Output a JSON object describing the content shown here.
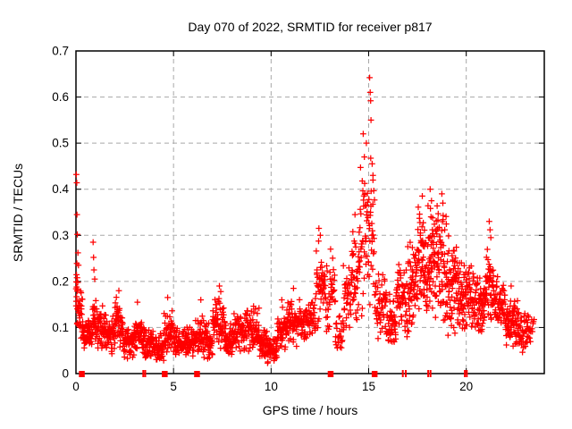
{
  "window": {
    "background": "#ffffff"
  },
  "chart_data": {
    "type": "scatter",
    "title": "Day 070 of 2022, SRMTID for receiver p817",
    "xlabel": "GPS time / hours",
    "ylabel": "SRMTID / TECUs",
    "xlim": [
      0,
      24
    ],
    "ylim": [
      0,
      0.7
    ],
    "grid": true,
    "legend": "none",
    "marker": "plus",
    "marker_color": "#ff0000",
    "grid_color": "#a8a8a8",
    "xticks": {
      "values": [
        0,
        5,
        10,
        15,
        20
      ],
      "labels": [
        "0",
        "5",
        "10",
        "15",
        "20"
      ]
    },
    "yticks": {
      "values": [
        0,
        0.1,
        0.2,
        0.3,
        0.4,
        0.5,
        0.6,
        0.7
      ],
      "labels": [
        "0",
        "0.1",
        "0.2",
        "0.3",
        "0.4",
        "0.5",
        "0.6",
        "0.7"
      ]
    },
    "series_name": "SRMTID",
    "density_bands_comment": "each band = [hour_start, hour_end, y_min_TECU, y_max_TECU, approx_point_count] estimated from plot",
    "density_bands": [
      [
        0.0,
        0.1,
        0.08,
        0.25,
        18
      ],
      [
        0.1,
        0.35,
        0.07,
        0.2,
        28
      ],
      [
        0.35,
        0.6,
        0.04,
        0.12,
        28
      ],
      [
        0.6,
        0.85,
        0.05,
        0.13,
        28
      ],
      [
        0.85,
        1.05,
        0.06,
        0.17,
        25
      ],
      [
        1.05,
        1.5,
        0.05,
        0.15,
        48
      ],
      [
        1.5,
        2.0,
        0.04,
        0.13,
        50
      ],
      [
        2.0,
        2.4,
        0.05,
        0.175,
        42
      ],
      [
        2.4,
        3.0,
        0.03,
        0.11,
        60
      ],
      [
        3.0,
        3.5,
        0.04,
        0.135,
        50
      ],
      [
        3.5,
        4.0,
        0.03,
        0.1,
        50
      ],
      [
        4.0,
        4.5,
        0.02,
        0.09,
        50
      ],
      [
        4.5,
        5.0,
        0.035,
        0.145,
        50
      ],
      [
        5.0,
        5.5,
        0.03,
        0.1,
        50
      ],
      [
        5.5,
        6.0,
        0.03,
        0.11,
        50
      ],
      [
        6.0,
        6.5,
        0.04,
        0.13,
        50
      ],
      [
        6.5,
        7.0,
        0.03,
        0.12,
        52
      ],
      [
        7.0,
        7.6,
        0.04,
        0.175,
        60
      ],
      [
        7.6,
        8.1,
        0.03,
        0.12,
        52
      ],
      [
        8.1,
        8.7,
        0.04,
        0.14,
        58
      ],
      [
        8.7,
        9.4,
        0.04,
        0.15,
        65
      ],
      [
        9.4,
        9.8,
        0.025,
        0.1,
        42
      ],
      [
        9.8,
        10.3,
        0.02,
        0.08,
        52
      ],
      [
        10.3,
        10.8,
        0.04,
        0.145,
        52
      ],
      [
        10.8,
        11.4,
        0.05,
        0.17,
        58
      ],
      [
        11.4,
        12.0,
        0.06,
        0.17,
        55
      ],
      [
        12.0,
        12.3,
        0.07,
        0.18,
        26
      ],
      [
        12.3,
        12.8,
        0.08,
        0.3,
        46
      ],
      [
        12.8,
        13.3,
        0.05,
        0.27,
        36
      ],
      [
        13.3,
        13.7,
        0.03,
        0.15,
        24
      ],
      [
        13.7,
        14.1,
        0.08,
        0.25,
        34
      ],
      [
        14.1,
        14.5,
        0.1,
        0.33,
        40
      ],
      [
        14.5,
        15.0,
        0.1,
        0.46,
        44
      ],
      [
        15.0,
        15.3,
        0.12,
        0.52,
        28
      ],
      [
        15.3,
        15.9,
        0.06,
        0.23,
        48
      ],
      [
        15.9,
        16.4,
        0.05,
        0.18,
        46
      ],
      [
        16.4,
        17.0,
        0.07,
        0.25,
        58
      ],
      [
        17.0,
        17.5,
        0.08,
        0.3,
        58
      ],
      [
        17.5,
        18.0,
        0.1,
        0.375,
        62
      ],
      [
        18.0,
        18.5,
        0.1,
        0.38,
        62
      ],
      [
        18.5,
        19.0,
        0.1,
        0.385,
        62
      ],
      [
        19.0,
        19.5,
        0.08,
        0.31,
        60
      ],
      [
        19.5,
        20.0,
        0.08,
        0.26,
        58
      ],
      [
        20.0,
        20.6,
        0.09,
        0.25,
        60
      ],
      [
        20.6,
        21.0,
        0.08,
        0.22,
        50
      ],
      [
        21.0,
        21.4,
        0.09,
        0.285,
        45
      ],
      [
        21.4,
        22.0,
        0.08,
        0.22,
        55
      ],
      [
        22.0,
        22.7,
        0.055,
        0.17,
        75
      ],
      [
        22.7,
        23.3,
        0.04,
        0.14,
        45
      ],
      [
        23.3,
        23.5,
        0.07,
        0.13,
        7
      ]
    ],
    "notable_points_comment": "clearly identifiable extreme/outlier points [hour, TECU]",
    "notable_points": [
      [
        0.02,
        0.432
      ],
      [
        0.04,
        0.414
      ],
      [
        0.05,
        0.345
      ],
      [
        0.07,
        0.302
      ],
      [
        0.1,
        0.262
      ],
      [
        0.13,
        0.235
      ],
      [
        0.88,
        0.285
      ],
      [
        0.9,
        0.252
      ],
      [
        0.92,
        0.225
      ],
      [
        0.96,
        0.205
      ],
      [
        2.2,
        0.18
      ],
      [
        3.15,
        0.155
      ],
      [
        4.7,
        0.165
      ],
      [
        6.4,
        0.16
      ],
      [
        7.35,
        0.19
      ],
      [
        7.42,
        0.178
      ],
      [
        10.55,
        0.16
      ],
      [
        11.15,
        0.185
      ],
      [
        12.45,
        0.315
      ],
      [
        12.52,
        0.3
      ],
      [
        13.05,
        0.27
      ],
      [
        14.3,
        0.345
      ],
      [
        14.72,
        0.52
      ],
      [
        14.78,
        0.47
      ],
      [
        14.88,
        0.5
      ],
      [
        15.05,
        0.642
      ],
      [
        15.08,
        0.61
      ],
      [
        15.1,
        0.592
      ],
      [
        15.12,
        0.55
      ],
      [
        15.18,
        0.455
      ],
      [
        15.22,
        0.43
      ],
      [
        17.75,
        0.385
      ],
      [
        18.15,
        0.4
      ],
      [
        18.22,
        0.375
      ],
      [
        18.75,
        0.39
      ],
      [
        18.8,
        0.37
      ],
      [
        21.18,
        0.33
      ],
      [
        21.22,
        0.312
      ],
      [
        21.26,
        0.295
      ],
      [
        22.3,
        0.19
      ]
    ],
    "zero_markers_comment": "red marks sitting on the y=0 axis line",
    "zero_markers": {
      "squares": [
        0.3,
        4.55,
        6.2,
        13.05,
        15.3
      ],
      "bars": [
        3.45,
        3.55,
        16.75,
        16.9,
        18.05,
        18.17,
        19.93,
        20.03
      ]
    }
  }
}
